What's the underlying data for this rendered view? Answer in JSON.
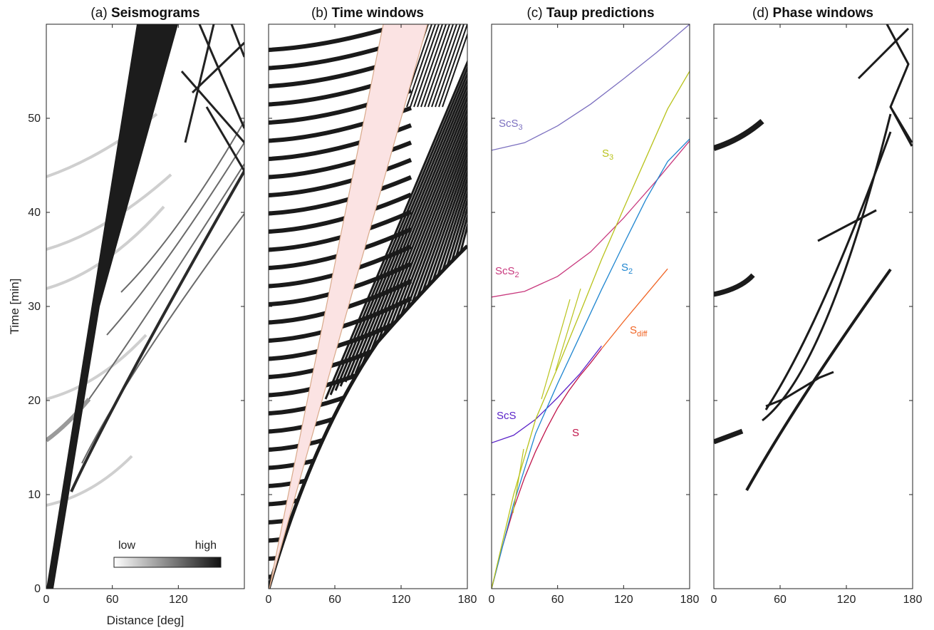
{
  "figure": {
    "ylabel": "Time [min]",
    "xlabel": "Distance [deg]",
    "y_ticks": [
      0,
      10,
      20,
      30,
      40,
      50
    ],
    "colorbar": {
      "low_label": "low",
      "high_label": "high"
    }
  },
  "panels": [
    {
      "letter": "(a)",
      "title": "Seismograms",
      "x_ticks": [
        0,
        60,
        120
      ]
    },
    {
      "letter": "(b)",
      "title": "Time windows",
      "x_ticks": [
        0,
        60,
        120,
        180
      ]
    },
    {
      "letter": "(c)",
      "title": "Taup predictions",
      "x_ticks": [
        0,
        60,
        120,
        180
      ]
    },
    {
      "letter": "(d)",
      "title": "Phase windows",
      "x_ticks": [
        0,
        60,
        120,
        180
      ]
    }
  ],
  "phase_labels": [
    {
      "main": "ScS",
      "sub": "3",
      "color": "#7b6fbf"
    },
    {
      "main": "S",
      "sub": "3",
      "color": "#b8c21a"
    },
    {
      "main": "ScS",
      "sub": "2",
      "color": "#c8387d"
    },
    {
      "main": "S",
      "sub": "2",
      "color": "#1f86d0"
    },
    {
      "main": "S",
      "sub": "diff",
      "color": "#f06424"
    },
    {
      "main": "ScS",
      "sub": "",
      "color": "#5a22c8"
    },
    {
      "main": "S",
      "sub": "",
      "color": "#c0144a"
    }
  ],
  "chart_data": [
    {
      "type": "heatmap",
      "title": "Seismograms",
      "xlabel": "Distance [deg]",
      "ylabel": "Time [min]",
      "xlim": [
        0,
        180
      ],
      "ylim": [
        0,
        60
      ],
      "legend": "bottom-right colorbar (low to high)"
    },
    {
      "type": "heatmap",
      "title": "Time windows",
      "xlim": [
        0,
        180
      ],
      "ylim": [
        0,
        60
      ],
      "shaded_window": {
        "x": [
          0,
          98,
          143
        ],
        "y_lower": [
          0,
          60,
          60
        ],
        "y_upper": [
          0,
          60,
          60
        ],
        "color": "#fbe3e3"
      }
    },
    {
      "type": "line",
      "title": "Taup predictions",
      "xlim": [
        0,
        180
      ],
      "ylim": [
        0,
        60
      ],
      "series": [
        {
          "name": "S",
          "color": "#c0144a",
          "x": [
            0,
            10,
            20,
            30,
            40,
            50,
            60,
            70,
            80,
            90,
            100
          ],
          "y": [
            0,
            4.5,
            8.5,
            11.8,
            14.6,
            17.0,
            19.2,
            21.0,
            22.6,
            24.0,
            25.5
          ]
        },
        {
          "name": "S_diff",
          "color": "#f06424",
          "x": [
            100,
            120,
            140,
            160
          ],
          "y": [
            25.5,
            28.4,
            31.2,
            34.0
          ]
        },
        {
          "name": "ScS",
          "color": "#5a22c8",
          "x": [
            0,
            20,
            40,
            60,
            80,
            100
          ],
          "y": [
            15.5,
            16.3,
            18.0,
            20.3,
            22.8,
            25.8
          ]
        },
        {
          "name": "ScS_2",
          "color": "#c8387d",
          "x": [
            0,
            30,
            60,
            90,
            120,
            150,
            180
          ],
          "y": [
            31.0,
            31.6,
            33.2,
            35.8,
            39.4,
            43.4,
            47.6
          ]
        },
        {
          "name": "ScS_3",
          "color": "#7b6fbf",
          "x": [
            0,
            30,
            60,
            90,
            120,
            150,
            180
          ],
          "y": [
            46.6,
            47.4,
            49.2,
            51.5,
            54.2,
            57.0,
            60.0
          ]
        },
        {
          "name": "S_2",
          "color": "#1f86d0",
          "x": [
            0,
            20,
            40,
            60,
            80,
            100,
            120,
            140,
            160,
            180
          ],
          "y": [
            0,
            9,
            16.5,
            21.8,
            26.8,
            31.8,
            36.6,
            41.3,
            45.4,
            47.8
          ]
        },
        {
          "name": "S_3",
          "color": "#b8c21a",
          "x": [
            0,
            20,
            40,
            60,
            80,
            100,
            120,
            140,
            160,
            180
          ],
          "y": [
            0,
            10,
            18,
            23.5,
            29.2,
            35.0,
            40.4,
            45.7,
            51.0,
            55.0
          ]
        }
      ]
    },
    {
      "type": "heatmap",
      "title": "Phase windows",
      "xlim": [
        0,
        180
      ],
      "ylim": [
        0,
        60
      ]
    }
  ]
}
